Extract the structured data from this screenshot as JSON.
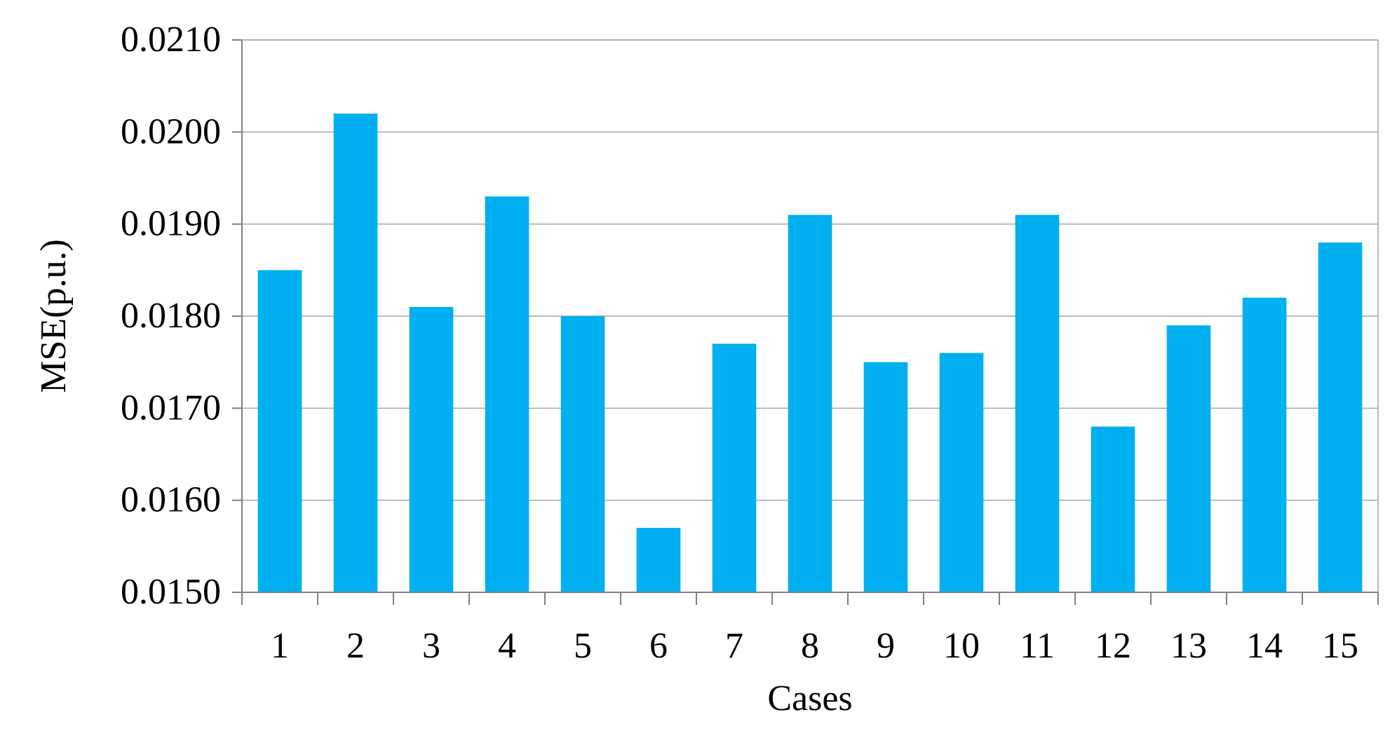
{
  "chart_data": {
    "type": "bar",
    "categories": [
      "1",
      "2",
      "3",
      "4",
      "5",
      "6",
      "7",
      "8",
      "9",
      "10",
      "11",
      "12",
      "13",
      "14",
      "15"
    ],
    "values": [
      0.0185,
      0.0202,
      0.0181,
      0.0193,
      0.018,
      0.0157,
      0.0177,
      0.0191,
      0.0175,
      0.0176,
      0.0191,
      0.0168,
      0.0179,
      0.0182,
      0.0188
    ],
    "title": "",
    "xlabel": "Cases",
    "ylabel": "MSE(p.u.)",
    "ylim": [
      0.015,
      0.021
    ],
    "yticks": [
      "0.0150",
      "0.0160",
      "0.0170",
      "0.0180",
      "0.0190",
      "0.0200",
      "0.0210"
    ],
    "grid": true,
    "bar_color": "#00B0F0"
  }
}
